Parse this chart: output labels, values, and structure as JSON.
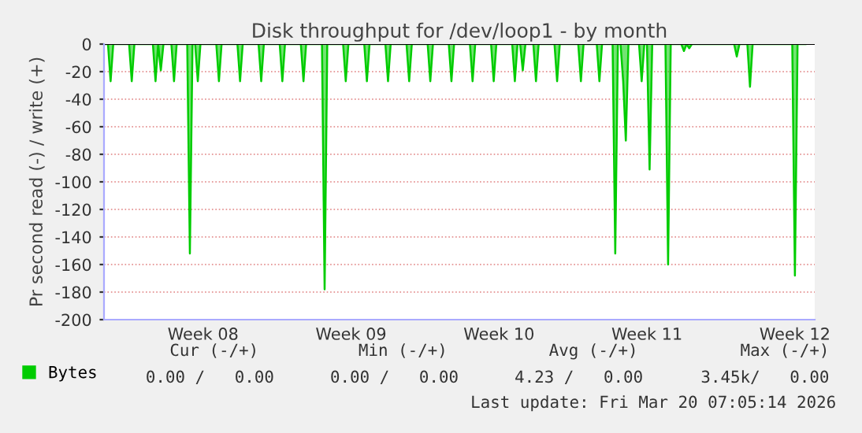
{
  "chart_data": {
    "type": "area",
    "title": "Disk throughput for /dev/loop1 - by month",
    "ylabel": "Pr second read (-) / write (+)",
    "categories": [
      null,
      null,
      null,
      null,
      null,
      null,
      null,
      null,
      null,
      null,
      null,
      null,
      null,
      null,
      null,
      null,
      null,
      null,
      null,
      null,
      null,
      null,
      null,
      null,
      null,
      null,
      null,
      null,
      null,
      null,
      null,
      null,
      null,
      null,
      null,
      null,
      null,
      "Week 08",
      null,
      null,
      null,
      null,
      null,
      null,
      null,
      null,
      null,
      null,
      null,
      null,
      null,
      null,
      null,
      null,
      null,
      null,
      null,
      null,
      null,
      null,
      null,
      null,
      null,
      null,
      null,
      null,
      null,
      null,
      null,
      null,
      null,
      null,
      null,
      null,
      null,
      null,
      null,
      null,
      null,
      null,
      null,
      null,
      null,
      null,
      null,
      null,
      null,
      null,
      null,
      null,
      null,
      null,
      null,
      "Week 09",
      null,
      null,
      null,
      null,
      null,
      null,
      null,
      null,
      null,
      null,
      null,
      null,
      null,
      null,
      null,
      null,
      null,
      null,
      null,
      null,
      null,
      null,
      null,
      null,
      null,
      null,
      null,
      null,
      null,
      null,
      null,
      null,
      null,
      null,
      null,
      null,
      null,
      null,
      null,
      null,
      null,
      null,
      null,
      null,
      null,
      null,
      null,
      null,
      null,
      null,
      null,
      null,
      null,
      null,
      null,
      "Week 10",
      null,
      null,
      null,
      null,
      null,
      null,
      null,
      null,
      null,
      null,
      null,
      null,
      null,
      null,
      null,
      null,
      null,
      null,
      null,
      null,
      null,
      null,
      null,
      null,
      null,
      null,
      null,
      null,
      null,
      null,
      null,
      null,
      null,
      null,
      null,
      null,
      null,
      null,
      null,
      null,
      null,
      null,
      null,
      null,
      null,
      null,
      null,
      null,
      null,
      null,
      null,
      null,
      null,
      null,
      null,
      "Week 11",
      null,
      null,
      null,
      null,
      null,
      null,
      null,
      null,
      null,
      null,
      null,
      null,
      null,
      null,
      null,
      null,
      null,
      null,
      null,
      null,
      null,
      null,
      null,
      null,
      null,
      null,
      null,
      null,
      null,
      null,
      null,
      null,
      null,
      null,
      null,
      null,
      null,
      null,
      null,
      null,
      null,
      null,
      null,
      null,
      null,
      null,
      null,
      null,
      null,
      null,
      null,
      null,
      null,
      null,
      null,
      "Week 12",
      null,
      null,
      null,
      null,
      null,
      null,
      null
    ],
    "series": [
      {
        "name": "Bytes",
        "color": "#00cc00",
        "values": [
          0,
          0,
          -27,
          0,
          0,
          0,
          0,
          0,
          0,
          0,
          -27,
          0,
          0,
          0,
          0,
          0,
          0,
          0,
          0,
          -27,
          0,
          -19,
          0,
          0,
          0,
          0,
          -27,
          0,
          0,
          0,
          0,
          0,
          -152,
          0,
          0,
          -27,
          0,
          0,
          0,
          0,
          0,
          0,
          0,
          -27,
          0,
          0,
          0,
          0,
          0,
          0,
          0,
          -27,
          0,
          0,
          0,
          0,
          0,
          0,
          0,
          -27,
          0,
          0,
          0,
          0,
          0,
          0,
          0,
          -27,
          0,
          0,
          0,
          0,
          0,
          0,
          0,
          -27,
          0,
          0,
          0,
          0,
          0,
          0,
          0,
          -178,
          0,
          0,
          0,
          0,
          0,
          0,
          0,
          -27,
          0,
          0,
          0,
          0,
          0,
          0,
          0,
          -27,
          0,
          0,
          0,
          0,
          0,
          0,
          0,
          -27,
          0,
          0,
          0,
          0,
          0,
          0,
          0,
          -27,
          0,
          0,
          0,
          0,
          0,
          0,
          0,
          -27,
          0,
          0,
          0,
          0,
          0,
          0,
          0,
          -27,
          0,
          0,
          0,
          0,
          0,
          0,
          0,
          -27,
          0,
          0,
          0,
          0,
          0,
          0,
          0,
          -27,
          0,
          0,
          0,
          0,
          0,
          0,
          0,
          -27,
          0,
          0,
          -19,
          0,
          0,
          0,
          0,
          -27,
          0,
          0,
          0,
          0,
          0,
          0,
          0,
          -27,
          0,
          0,
          0,
          0,
          0,
          0,
          0,
          0,
          -27,
          0,
          0,
          0,
          0,
          0,
          0,
          -27,
          0,
          0,
          0,
          0,
          0,
          -152,
          0,
          0,
          -27,
          -70,
          0,
          0,
          0,
          0,
          0,
          -27,
          0,
          0,
          -91,
          0,
          0,
          0,
          0,
          0,
          0,
          -160,
          0,
          0,
          0,
          0,
          0,
          -5,
          0,
          -3,
          0,
          0,
          0,
          0,
          0,
          0,
          0,
          0,
          0,
          0,
          0,
          0,
          0,
          0,
          0,
          0,
          0,
          -9,
          0,
          0,
          0,
          0,
          -31,
          0,
          0,
          0,
          0,
          0,
          0,
          0,
          0,
          0,
          0,
          0,
          0,
          0,
          0,
          0,
          0,
          -168,
          0,
          0,
          0,
          0,
          null,
          null,
          null
        ]
      }
    ],
    "ylim": [
      -200,
      0
    ],
    "yticks": [
      -200,
      -180,
      -160,
      -140,
      -120,
      -100,
      -80,
      -60,
      -40,
      -20,
      0
    ],
    "grid": "y",
    "legend": "bottom left",
    "annotations": [
      "Cur (-/+)",
      "Min (-/+)",
      "Avg (-/+)",
      "Max (-/+)",
      "0.00 /   0.00",
      "0.00 /   0.00",
      "4.23 /   0.00",
      "3.45k/   0.00",
      "Last update: Fri Mar 20 07:05:14 2026"
    ]
  }
}
